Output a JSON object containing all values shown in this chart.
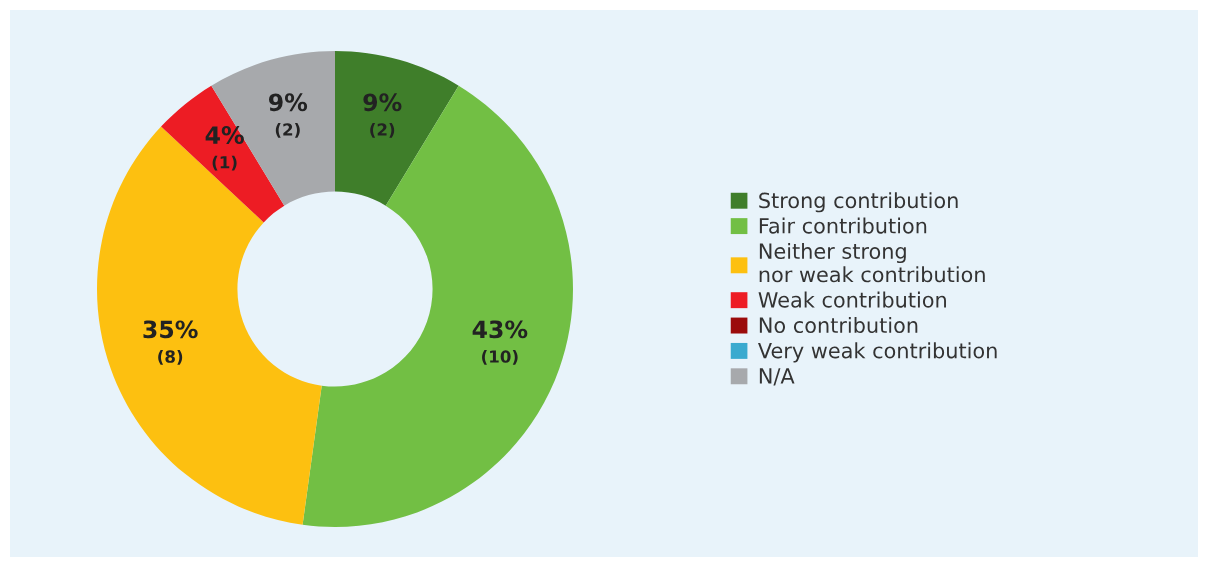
{
  "chart_data": {
    "type": "donut",
    "categories": [
      "Strong contribution",
      "Fair contribution",
      "Neither strong\nnor weak contribution",
      "Weak contribution",
      "No contribution",
      "Very weak contribution",
      "N/A"
    ],
    "values": [
      2,
      10,
      8,
      1,
      0,
      0,
      2
    ],
    "value_labels": [
      "9%\n(2)",
      "43%\n(10)",
      "35%\n(8)",
      "4%\n(1)",
      null,
      null,
      "9%\n(2)"
    ],
    "colors": [
      "#3f7e2a",
      "#72bf44",
      "#fdc010",
      "#ed1c24",
      "#9b0b0b",
      "#3aaacf",
      "#a7a9ac"
    ],
    "legend": "right"
  }
}
